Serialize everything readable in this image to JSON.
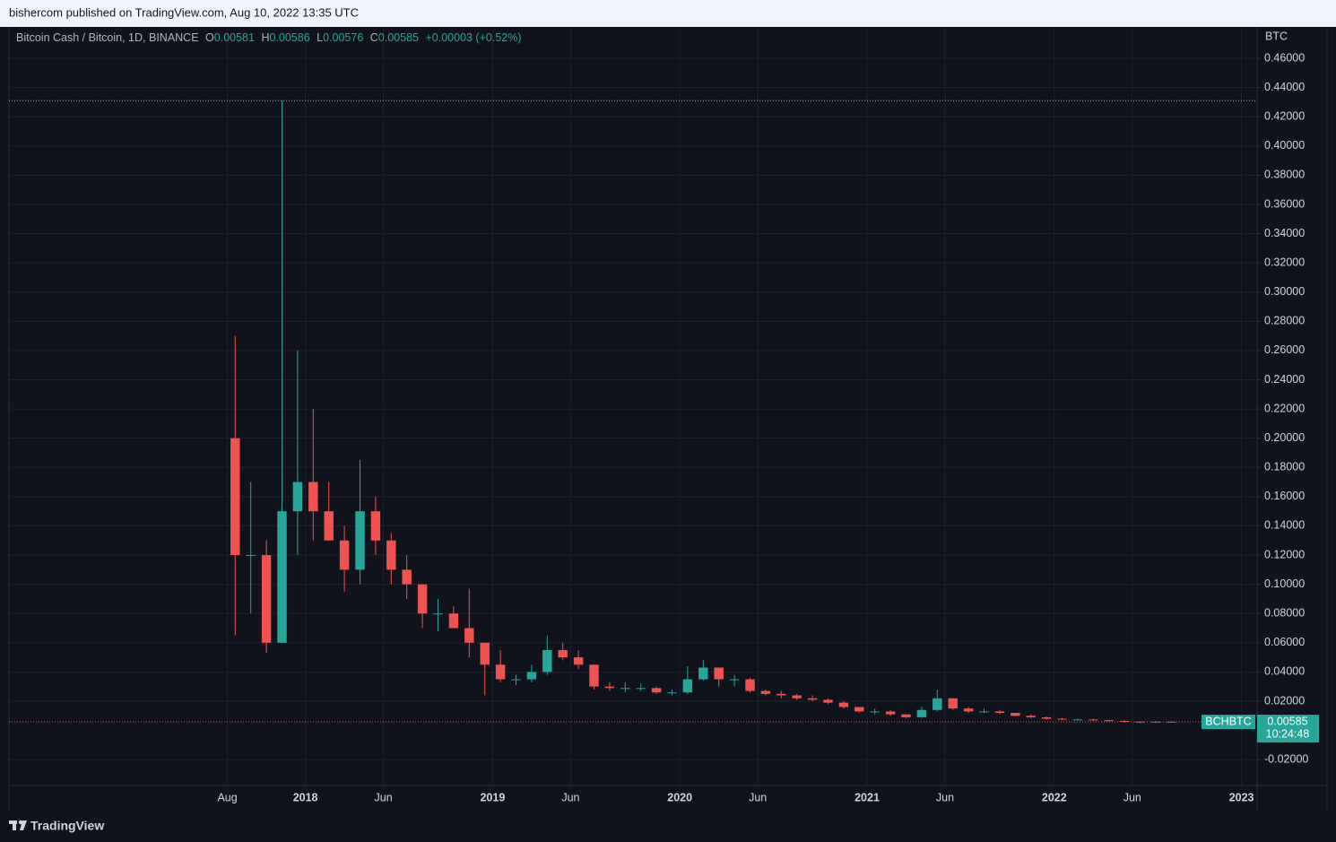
{
  "header": {
    "published": "bishercom published on TradingView.com, Aug 10, 2022 13:35 UTC"
  },
  "footer": {
    "brand": "TradingView"
  },
  "chart_data": {
    "type": "candlestick",
    "symbol_title": "Bitcoin Cash / Bitcoin, 1D, BINANCE",
    "ohlc": {
      "open": {
        "label": "O",
        "value": 0.00581
      },
      "high": {
        "label": "H",
        "value": 0.00586
      },
      "low": {
        "label": "L",
        "value": 0.00576
      },
      "close": {
        "label": "C",
        "value": 0.00585
      },
      "change": "+0.00003 (+0.52%)"
    },
    "unit": "BTC",
    "ticker": "BCHBTC",
    "last_price": 0.00585,
    "countdown": "10:24:48",
    "high_marker": 0.431,
    "up_color": "#26a69a",
    "down_color": "#ef5350",
    "grid": true,
    "xlim": [
      "2016-06",
      "2023-02"
    ],
    "xticks": [
      {
        "value": "2017-08",
        "label": "Aug"
      },
      {
        "value": "2018-01",
        "label": "2018"
      },
      {
        "value": "2018-06",
        "label": "Jun"
      },
      {
        "value": "2019-01",
        "label": "2019"
      },
      {
        "value": "2019-06",
        "label": "Jun"
      },
      {
        "value": "2020-01",
        "label": "2020"
      },
      {
        "value": "2020-06",
        "label": "Jun"
      },
      {
        "value": "2021-01",
        "label": "2021"
      },
      {
        "value": "2021-06",
        "label": "Jun"
      },
      {
        "value": "2022-01",
        "label": "2022"
      },
      {
        "value": "2022-06",
        "label": "Jun"
      },
      {
        "value": "2023-01",
        "label": "2023"
      }
    ],
    "ylim": [
      -0.0377,
      0.4815
    ],
    "yticks": [
      {
        "value": -0.02,
        "label": "-0.02000"
      },
      {
        "value": 0.02,
        "label": "0.02000"
      },
      {
        "value": 0.04,
        "label": "0.04000"
      },
      {
        "value": 0.06,
        "label": "0.06000"
      },
      {
        "value": 0.08,
        "label": "0.08000"
      },
      {
        "value": 0.1,
        "label": "0.10000"
      },
      {
        "value": 0.12,
        "label": "0.12000"
      },
      {
        "value": 0.14,
        "label": "0.14000"
      },
      {
        "value": 0.16,
        "label": "0.16000"
      },
      {
        "value": 0.18,
        "label": "0.18000"
      },
      {
        "value": 0.2,
        "label": "0.20000"
      },
      {
        "value": 0.22,
        "label": "0.22000"
      },
      {
        "value": 0.24,
        "label": "0.24000"
      },
      {
        "value": 0.26,
        "label": "0.26000"
      },
      {
        "value": 0.28,
        "label": "0.28000"
      },
      {
        "value": 0.3,
        "label": "0.30000"
      },
      {
        "value": 0.32,
        "label": "0.32000"
      },
      {
        "value": 0.34,
        "label": "0.34000"
      },
      {
        "value": 0.36,
        "label": "0.36000"
      },
      {
        "value": 0.38,
        "label": "0.38000"
      },
      {
        "value": 0.4,
        "label": "0.40000"
      },
      {
        "value": 0.42,
        "label": "0.42000"
      },
      {
        "value": 0.44,
        "label": "0.44000"
      },
      {
        "value": 0.46,
        "label": "0.46000"
      }
    ],
    "x": [
      "2017-08",
      "2017-09",
      "2017-10",
      "2017-11",
      "2017-12",
      "2018-01",
      "2018-02",
      "2018-03",
      "2018-04",
      "2018-05",
      "2018-06",
      "2018-07",
      "2018-08",
      "2018-09",
      "2018-10",
      "2018-11",
      "2018-12",
      "2019-01",
      "2019-02",
      "2019-03",
      "2019-04",
      "2019-05",
      "2019-06",
      "2019-07",
      "2019-08",
      "2019-09",
      "2019-10",
      "2019-11",
      "2019-12",
      "2020-01",
      "2020-02",
      "2020-03",
      "2020-04",
      "2020-05",
      "2020-06",
      "2020-07",
      "2020-08",
      "2020-09",
      "2020-10",
      "2020-11",
      "2020-12",
      "2021-01",
      "2021-02",
      "2021-03",
      "2021-04",
      "2021-05",
      "2021-06",
      "2021-07",
      "2021-08",
      "2021-09",
      "2021-10",
      "2021-11",
      "2021-12",
      "2022-01",
      "2022-02",
      "2022-03",
      "2022-04",
      "2022-05",
      "2022-06",
      "2022-07",
      "2022-08"
    ],
    "open": [
      0.2,
      0.12,
      0.12,
      0.06,
      0.15,
      0.17,
      0.15,
      0.13,
      0.11,
      0.15,
      0.13,
      0.11,
      0.1,
      0.08,
      0.08,
      0.07,
      0.06,
      0.045,
      0.035,
      0.035,
      0.04,
      0.055,
      0.05,
      0.045,
      0.03,
      0.029,
      0.029,
      0.029,
      0.026,
      0.026,
      0.035,
      0.043,
      0.035,
      0.035,
      0.027,
      0.025,
      0.024,
      0.022,
      0.021,
      0.019,
      0.016,
      0.013,
      0.013,
      0.011,
      0.009,
      0.014,
      0.022,
      0.015,
      0.013,
      0.013,
      0.012,
      0.01,
      0.009,
      0.008,
      0.0075,
      0.0075,
      0.007,
      0.0065,
      0.006,
      0.0055,
      0.006
    ],
    "high": [
      0.27,
      0.17,
      0.13,
      0.431,
      0.26,
      0.22,
      0.17,
      0.14,
      0.185,
      0.16,
      0.135,
      0.12,
      0.1,
      0.09,
      0.085,
      0.097,
      0.06,
      0.055,
      0.038,
      0.045,
      0.065,
      0.06,
      0.055,
      0.045,
      0.033,
      0.033,
      0.032,
      0.03,
      0.028,
      0.044,
      0.048,
      0.043,
      0.038,
      0.036,
      0.028,
      0.027,
      0.025,
      0.024,
      0.022,
      0.02,
      0.016,
      0.015,
      0.014,
      0.011,
      0.016,
      0.028,
      0.022,
      0.016,
      0.015,
      0.014,
      0.012,
      0.011,
      0.0095,
      0.0085,
      0.008,
      0.008,
      0.0072,
      0.0068,
      0.0062,
      0.0063,
      0.0062
    ],
    "low": [
      0.065,
      0.08,
      0.053,
      0.06,
      0.12,
      0.13,
      0.13,
      0.095,
      0.1,
      0.12,
      0.1,
      0.09,
      0.07,
      0.068,
      0.07,
      0.05,
      0.024,
      0.033,
      0.031,
      0.033,
      0.038,
      0.048,
      0.042,
      0.028,
      0.027,
      0.026,
      0.027,
      0.025,
      0.024,
      0.025,
      0.034,
      0.03,
      0.03,
      0.026,
      0.024,
      0.022,
      0.021,
      0.02,
      0.018,
      0.015,
      0.012,
      0.011,
      0.01,
      0.0085,
      0.0085,
      0.013,
      0.014,
      0.012,
      0.012,
      0.011,
      0.0095,
      0.0085,
      0.0075,
      0.007,
      0.007,
      0.0068,
      0.0062,
      0.0055,
      0.005,
      0.0052,
      0.0057
    ],
    "close": [
      0.12,
      0.12,
      0.06,
      0.15,
      0.17,
      0.15,
      0.13,
      0.11,
      0.15,
      0.13,
      0.11,
      0.1,
      0.08,
      0.08,
      0.07,
      0.06,
      0.045,
      0.035,
      0.035,
      0.04,
      0.055,
      0.05,
      0.045,
      0.03,
      0.029,
      0.029,
      0.029,
      0.026,
      0.026,
      0.035,
      0.043,
      0.035,
      0.035,
      0.027,
      0.025,
      0.024,
      0.022,
      0.021,
      0.019,
      0.016,
      0.013,
      0.013,
      0.011,
      0.009,
      0.014,
      0.022,
      0.015,
      0.013,
      0.013,
      0.012,
      0.01,
      0.009,
      0.008,
      0.0075,
      0.0075,
      0.007,
      0.0065,
      0.006,
      0.0055,
      0.006,
      0.00585
    ]
  }
}
